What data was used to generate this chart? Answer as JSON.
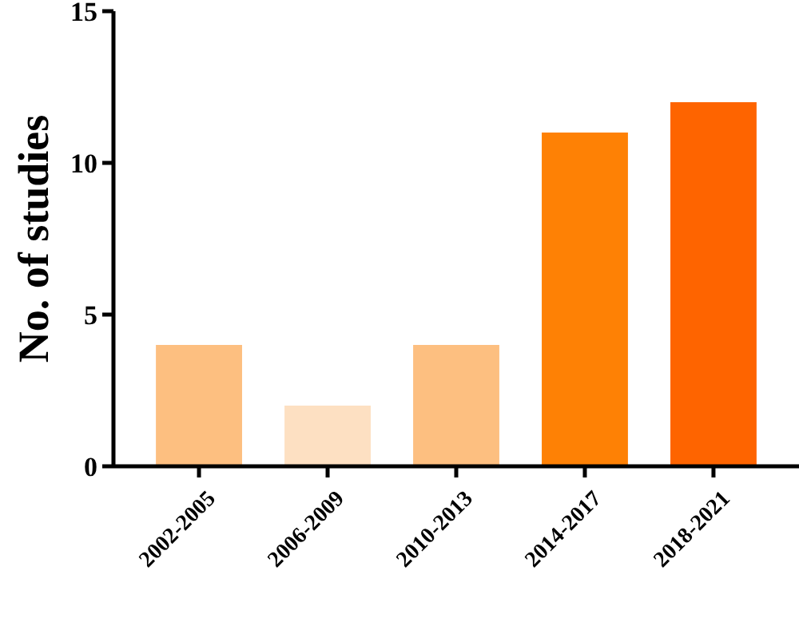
{
  "chart_data": {
    "type": "bar",
    "ylabel": "No. of studies",
    "categories": [
      "2002-2005",
      "2006-2009",
      "2010-2013",
      "2014-2017",
      "2018-2021"
    ],
    "values": [
      4,
      2,
      4,
      11,
      12
    ],
    "colors": [
      "#fdbf80",
      "#fde0c2",
      "#fdbf80",
      "#fe8105",
      "#fe6400"
    ],
    "ylim": [
      0,
      15
    ],
    "yticks": [
      0,
      5,
      10,
      15
    ],
    "grid": false
  }
}
